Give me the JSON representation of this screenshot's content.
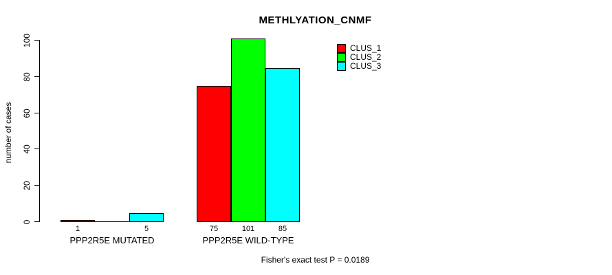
{
  "chart_data": {
    "type": "bar",
    "title": "METHLYATION_CNMF",
    "ylabel": "number of cases",
    "xlabel": "",
    "ylim": [
      0,
      100
    ],
    "yticks": [
      0,
      20,
      40,
      60,
      80,
      100
    ],
    "grid": false,
    "legend_position": "top-right",
    "legend": [
      {
        "label": "CLUS_1",
        "color": "#ff0000"
      },
      {
        "label": "CLUS_2",
        "color": "#00ff00"
      },
      {
        "label": "CLUS_3",
        "color": "#00ffff"
      }
    ],
    "series_names": [
      "CLUS_1",
      "CLUS_2",
      "CLUS_3"
    ],
    "groups": [
      {
        "label": "PPP2R5E MUTATED",
        "values": [
          1,
          0,
          5
        ],
        "value_labels": [
          "1",
          "",
          "5"
        ]
      },
      {
        "label": "PPP2R5E WILD-TYPE",
        "values": [
          75,
          101,
          85
        ],
        "value_labels": [
          "75",
          "101",
          "85"
        ]
      }
    ],
    "footer": "Fisher's exact test P = 0.0189",
    "colors": {
      "background": "#ffffff",
      "axis": "#000000",
      "text": "#000000"
    }
  }
}
